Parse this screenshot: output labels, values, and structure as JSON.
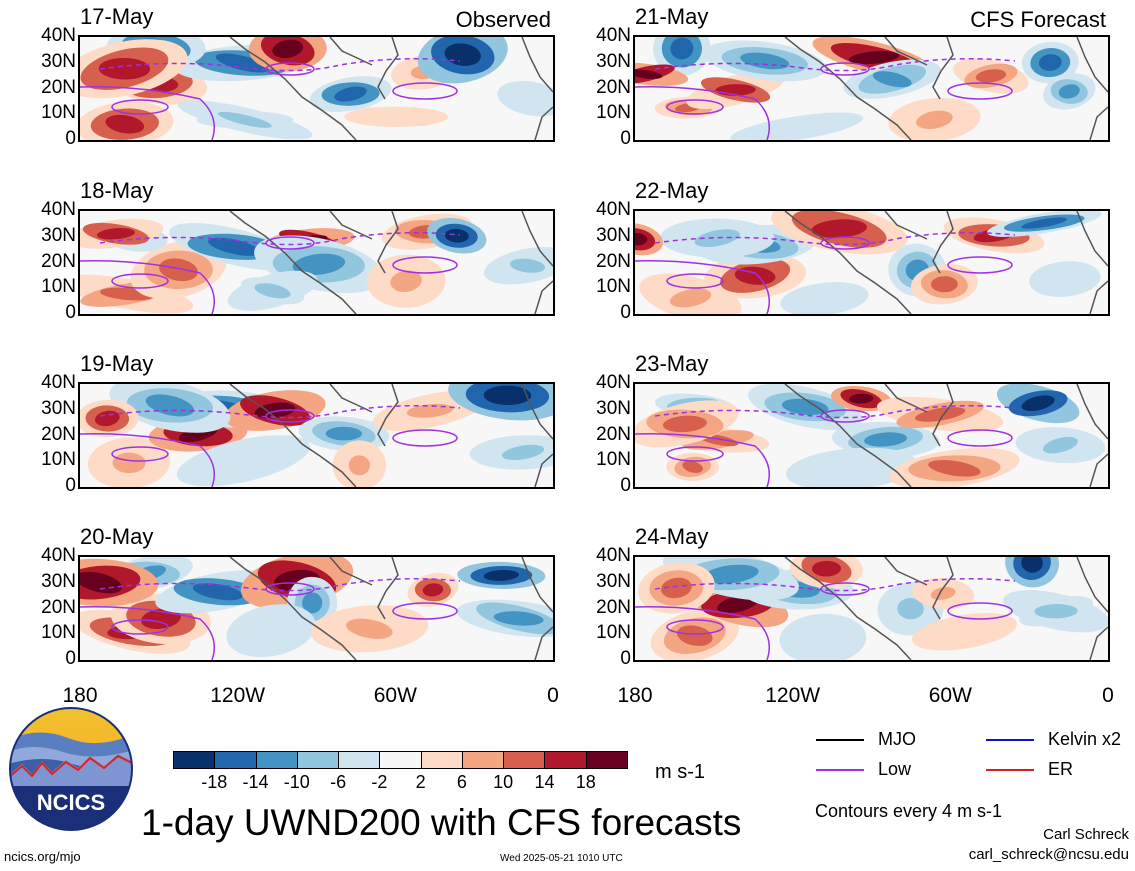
{
  "panels": [
    {
      "date": "17-May",
      "label": "Observed",
      "col": 0,
      "row": 0
    },
    {
      "date": "18-May",
      "label": "",
      "col": 0,
      "row": 1
    },
    {
      "date": "19-May",
      "label": "",
      "col": 0,
      "row": 2
    },
    {
      "date": "20-May",
      "label": "",
      "col": 0,
      "row": 3
    },
    {
      "date": "21-May",
      "label": "CFS Forecast",
      "col": 1,
      "row": 0
    },
    {
      "date": "22-May",
      "label": "",
      "col": 1,
      "row": 1
    },
    {
      "date": "23-May",
      "label": "",
      "col": 1,
      "row": 2
    },
    {
      "date": "24-May",
      "label": "",
      "col": 1,
      "row": 3
    }
  ],
  "y_ticks": [
    "40N",
    "30N",
    "20N",
    "10N",
    "0"
  ],
  "x_ticks": [
    "180",
    "120W",
    "60W",
    "0"
  ],
  "colorbar": {
    "colors": [
      "#08306b",
      "#2166ac",
      "#4393c3",
      "#92c5de",
      "#d1e5f0",
      "#f7f7f7",
      "#fddbc7",
      "#f4a582",
      "#d6604d",
      "#b2182b",
      "#67001f"
    ],
    "labels": [
      "-18",
      "-14",
      "-10",
      "-6",
      "-2",
      "2",
      "6",
      "10",
      "14",
      "18"
    ],
    "units": "m s-1"
  },
  "legend": {
    "items": [
      {
        "label": "MJO",
        "color": "#000000"
      },
      {
        "label": "Kelvin x2",
        "color": "#1010c0"
      },
      {
        "label": "Low",
        "color": "#a030e0"
      },
      {
        "label": "ER",
        "color": "#d02020"
      }
    ],
    "contours_note": "Contours every 4 m s-1"
  },
  "logo_text": "NCICS",
  "title": "1-day UWND200 with CFS forecasts",
  "footer": {
    "url": "ncics.org/mjo",
    "timestamp": "Wed 2025-05-21 1010 UTC",
    "author": "Carl Schreck",
    "email": "carl_schreck@ncsu.edu"
  }
}
